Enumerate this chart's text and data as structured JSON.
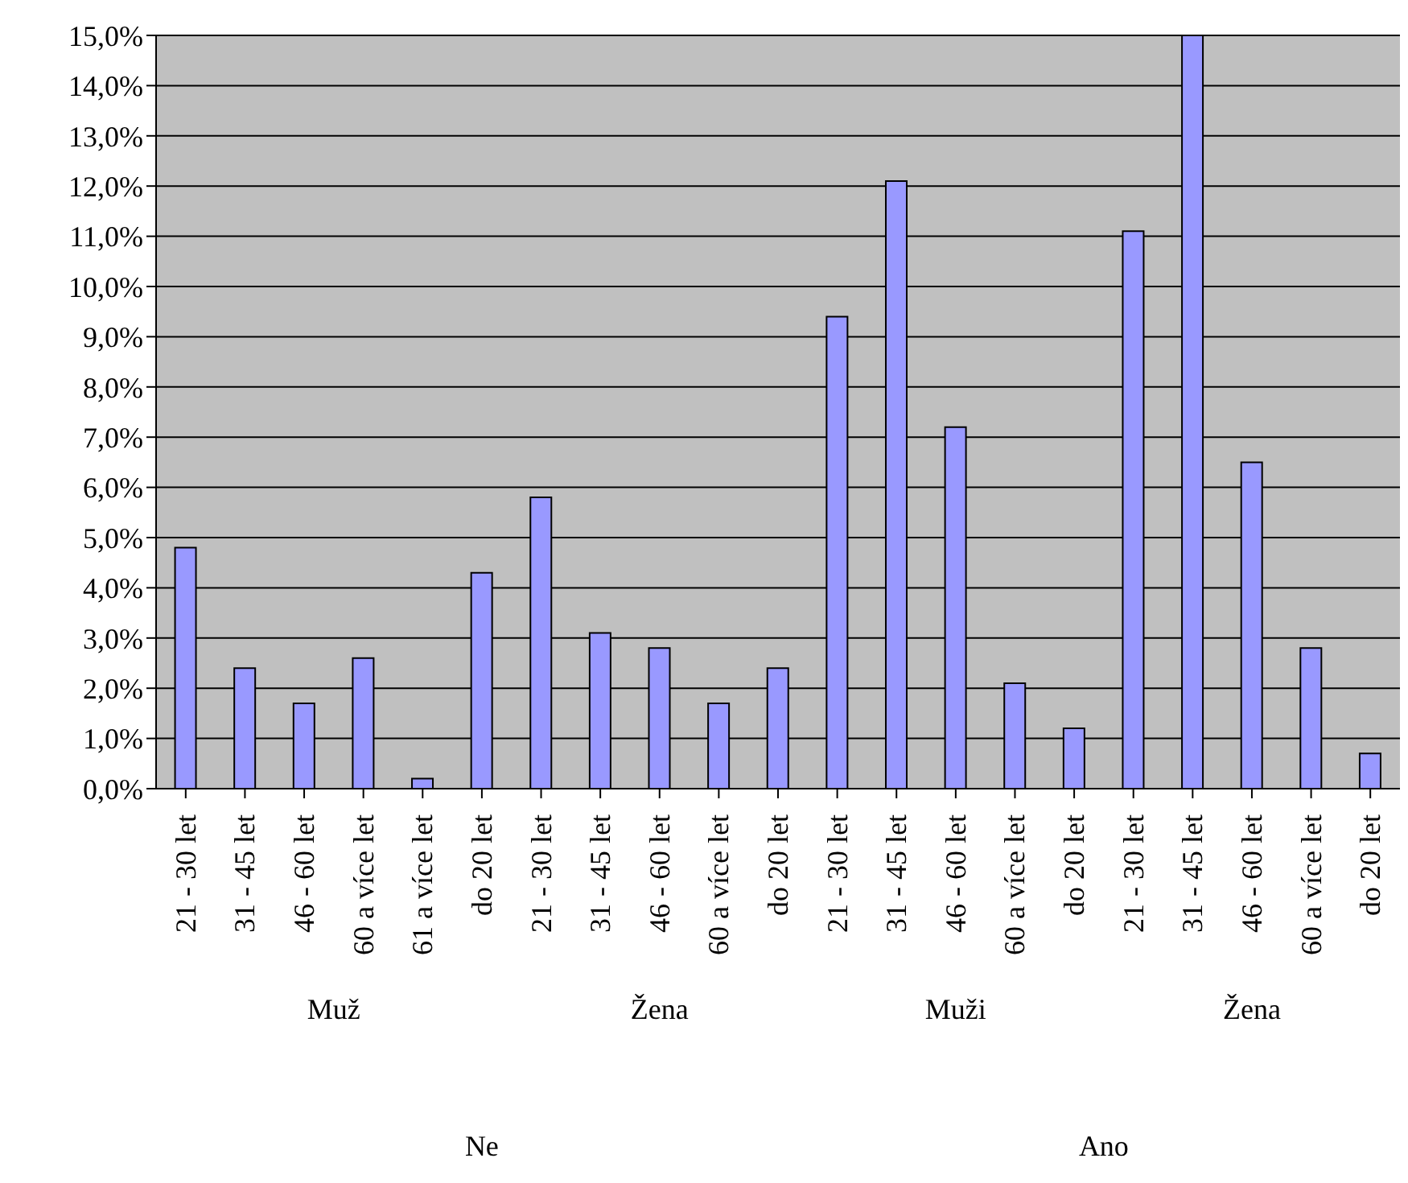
{
  "chart_data": {
    "type": "bar",
    "categories": [
      "21 - 30 let",
      "31 - 45 let",
      "46 - 60 let",
      "60 a více let",
      "61 a více let",
      "do 20 let",
      "21 - 30 let",
      "31 - 45 let",
      "46 - 60 let",
      "60 a více let",
      "do 20 let",
      "21 - 30 let",
      "31 - 45 let",
      "46 - 60 let",
      "60 a více let",
      "do 20 let",
      "21 - 30 let",
      "31 - 45 let",
      "46 - 60 let",
      "60 a více let",
      "do 20 let"
    ],
    "values": [
      4.8,
      2.4,
      1.7,
      2.6,
      0.2,
      4.3,
      5.8,
      3.1,
      2.8,
      1.7,
      2.4,
      9.4,
      12.1,
      7.2,
      2.1,
      1.2,
      11.1,
      15.0,
      6.5,
      2.8,
      0.7
    ],
    "color": "#9999ff",
    "ylim": [
      0,
      15
    ],
    "yticks": [
      {
        "value": 0,
        "label": "0,0%"
      },
      {
        "value": 1,
        "label": "1,0%"
      },
      {
        "value": 2,
        "label": "2,0%"
      },
      {
        "value": 3,
        "label": "3,0%"
      },
      {
        "value": 4,
        "label": "4,0%"
      },
      {
        "value": 5,
        "label": "5,0%"
      },
      {
        "value": 6,
        "label": "6,0%"
      },
      {
        "value": 7,
        "label": "7,0%"
      },
      {
        "value": 8,
        "label": "8,0%"
      },
      {
        "value": 9,
        "label": "9,0%"
      },
      {
        "value": 10,
        "label": "10,0%"
      },
      {
        "value": 11,
        "label": "11,0%"
      },
      {
        "value": 12,
        "label": "12,0%"
      },
      {
        "value": 13,
        "label": "13,0%"
      },
      {
        "value": 14,
        "label": "14,0%"
      },
      {
        "value": 15,
        "label": "15,0%"
      }
    ],
    "grid": "y",
    "annotations": [
      "Muž",
      "Žena",
      "Muži",
      "Žena",
      "Ne",
      "Ano"
    ]
  }
}
